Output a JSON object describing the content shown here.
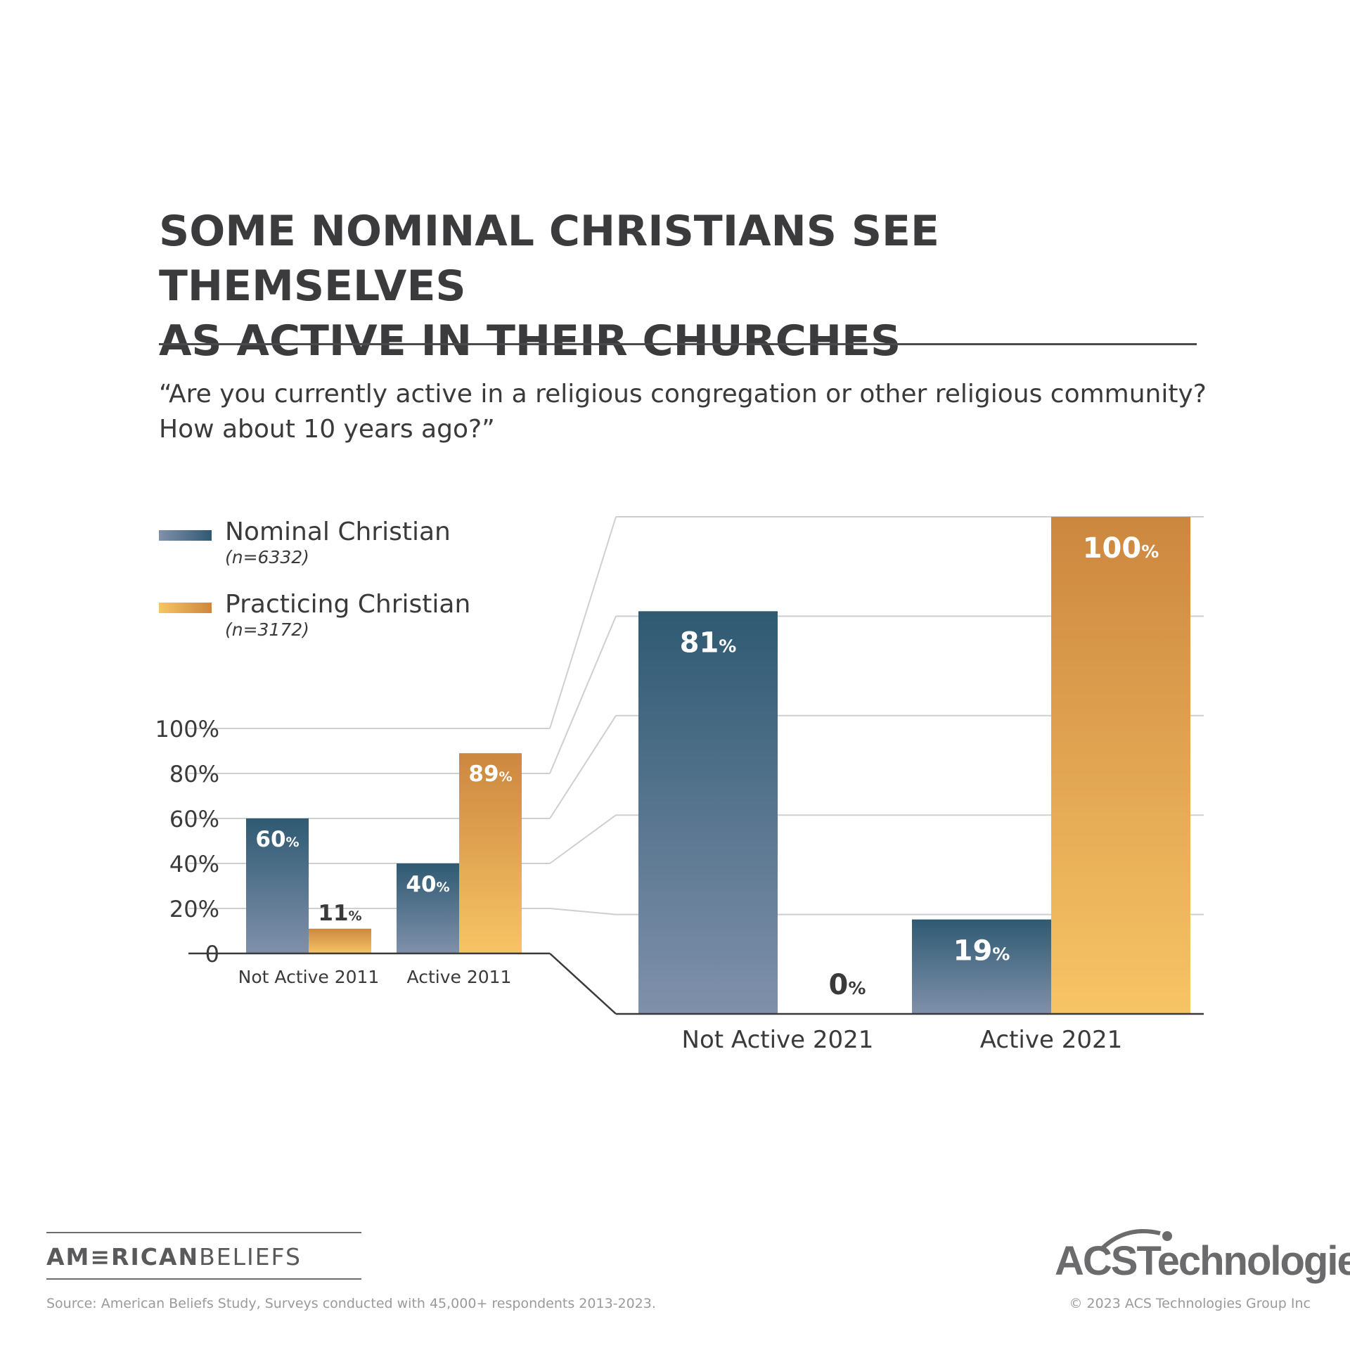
{
  "title_lines": [
    "SOME NOMINAL CHRISTIANS SEE THEMSELVES",
    "AS ACTIVE IN THEIR CHURCHES"
  ],
  "question_lines": [
    "“Are you currently active in a religious congregation or other religious community?",
    "How about 10 years ago?”"
  ],
  "legend": [
    {
      "label": "Nominal Christian",
      "n": "(n=6332)"
    },
    {
      "label": "Practicing Christian",
      "n": "(n=3172)"
    }
  ],
  "colors": {
    "nominal_top": "#2f5a72",
    "nominal_bottom": "#8090ab",
    "practicing_top": "#cc873f",
    "practicing_bottom": "#f7c465",
    "text": "#3a3a3c",
    "grid": "#cfcfd1"
  },
  "chart_data": [
    {
      "type": "bar",
      "categories": [
        "Not Active 2011",
        "Active 2011"
      ],
      "series": [
        {
          "name": "Nominal Christian",
          "values": [
            60,
            40
          ]
        },
        {
          "name": "Practicing Christian",
          "values": [
            11,
            89
          ]
        }
      ],
      "value_labels": [
        [
          "60",
          "40"
        ],
        [
          "11",
          "89"
        ]
      ],
      "yticks": [
        "0",
        "20%",
        "40%",
        "60%",
        "80%",
        "100%"
      ],
      "ylim": [
        0,
        100
      ],
      "unit_suffix": "%"
    },
    {
      "type": "bar",
      "categories": [
        "Not Active 2021",
        "Active 2021"
      ],
      "series": [
        {
          "name": "Nominal Christian",
          "values": [
            81,
            19
          ]
        },
        {
          "name": "Practicing Christian",
          "values": [
            0,
            100
          ]
        }
      ],
      "value_labels": [
        [
          "81",
          "19"
        ],
        [
          "0",
          "100"
        ]
      ],
      "ylim": [
        0,
        100
      ],
      "unit_suffix": "%"
    }
  ],
  "footer": {
    "brand_bold": "AM≡RICAN",
    "brand_light": "BELIEFS",
    "acs_logo": "ACSTechnologies",
    "source": "Source: American Beliefs Study, Surveys conducted with 45,000+ respondents 2013-2023.",
    "copyright": "© 2023 ACS Technologies Group Inc"
  }
}
